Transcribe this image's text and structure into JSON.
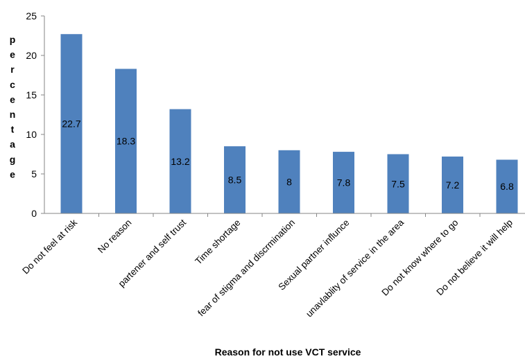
{
  "chart_data": {
    "type": "bar",
    "title": "",
    "xlabel": "Reason for not use VCT service",
    "ylabel": "percentage",
    "ylim": [
      0,
      25
    ],
    "yticks": [
      0,
      5,
      10,
      15,
      20,
      25
    ],
    "grid": false,
    "legend": "none",
    "bar_color": "#4F81BD",
    "categories": [
      "Do not feel at risk",
      "No reason",
      "partener and self trust",
      "Time shortage",
      "fear of stigma and discrmination",
      "Sexual partner influnce",
      "unavlablity of service in the area",
      "Do not know where to go",
      "Do not believe it will help"
    ],
    "values": [
      22.7,
      18.3,
      13.2,
      8.5,
      8,
      7.8,
      7.5,
      7.2,
      6.8
    ],
    "data_labels": [
      "22.7",
      "18.3",
      "13.2",
      "8.5",
      "8",
      "7.8",
      "7.5",
      "7.2",
      "6.8"
    ]
  }
}
